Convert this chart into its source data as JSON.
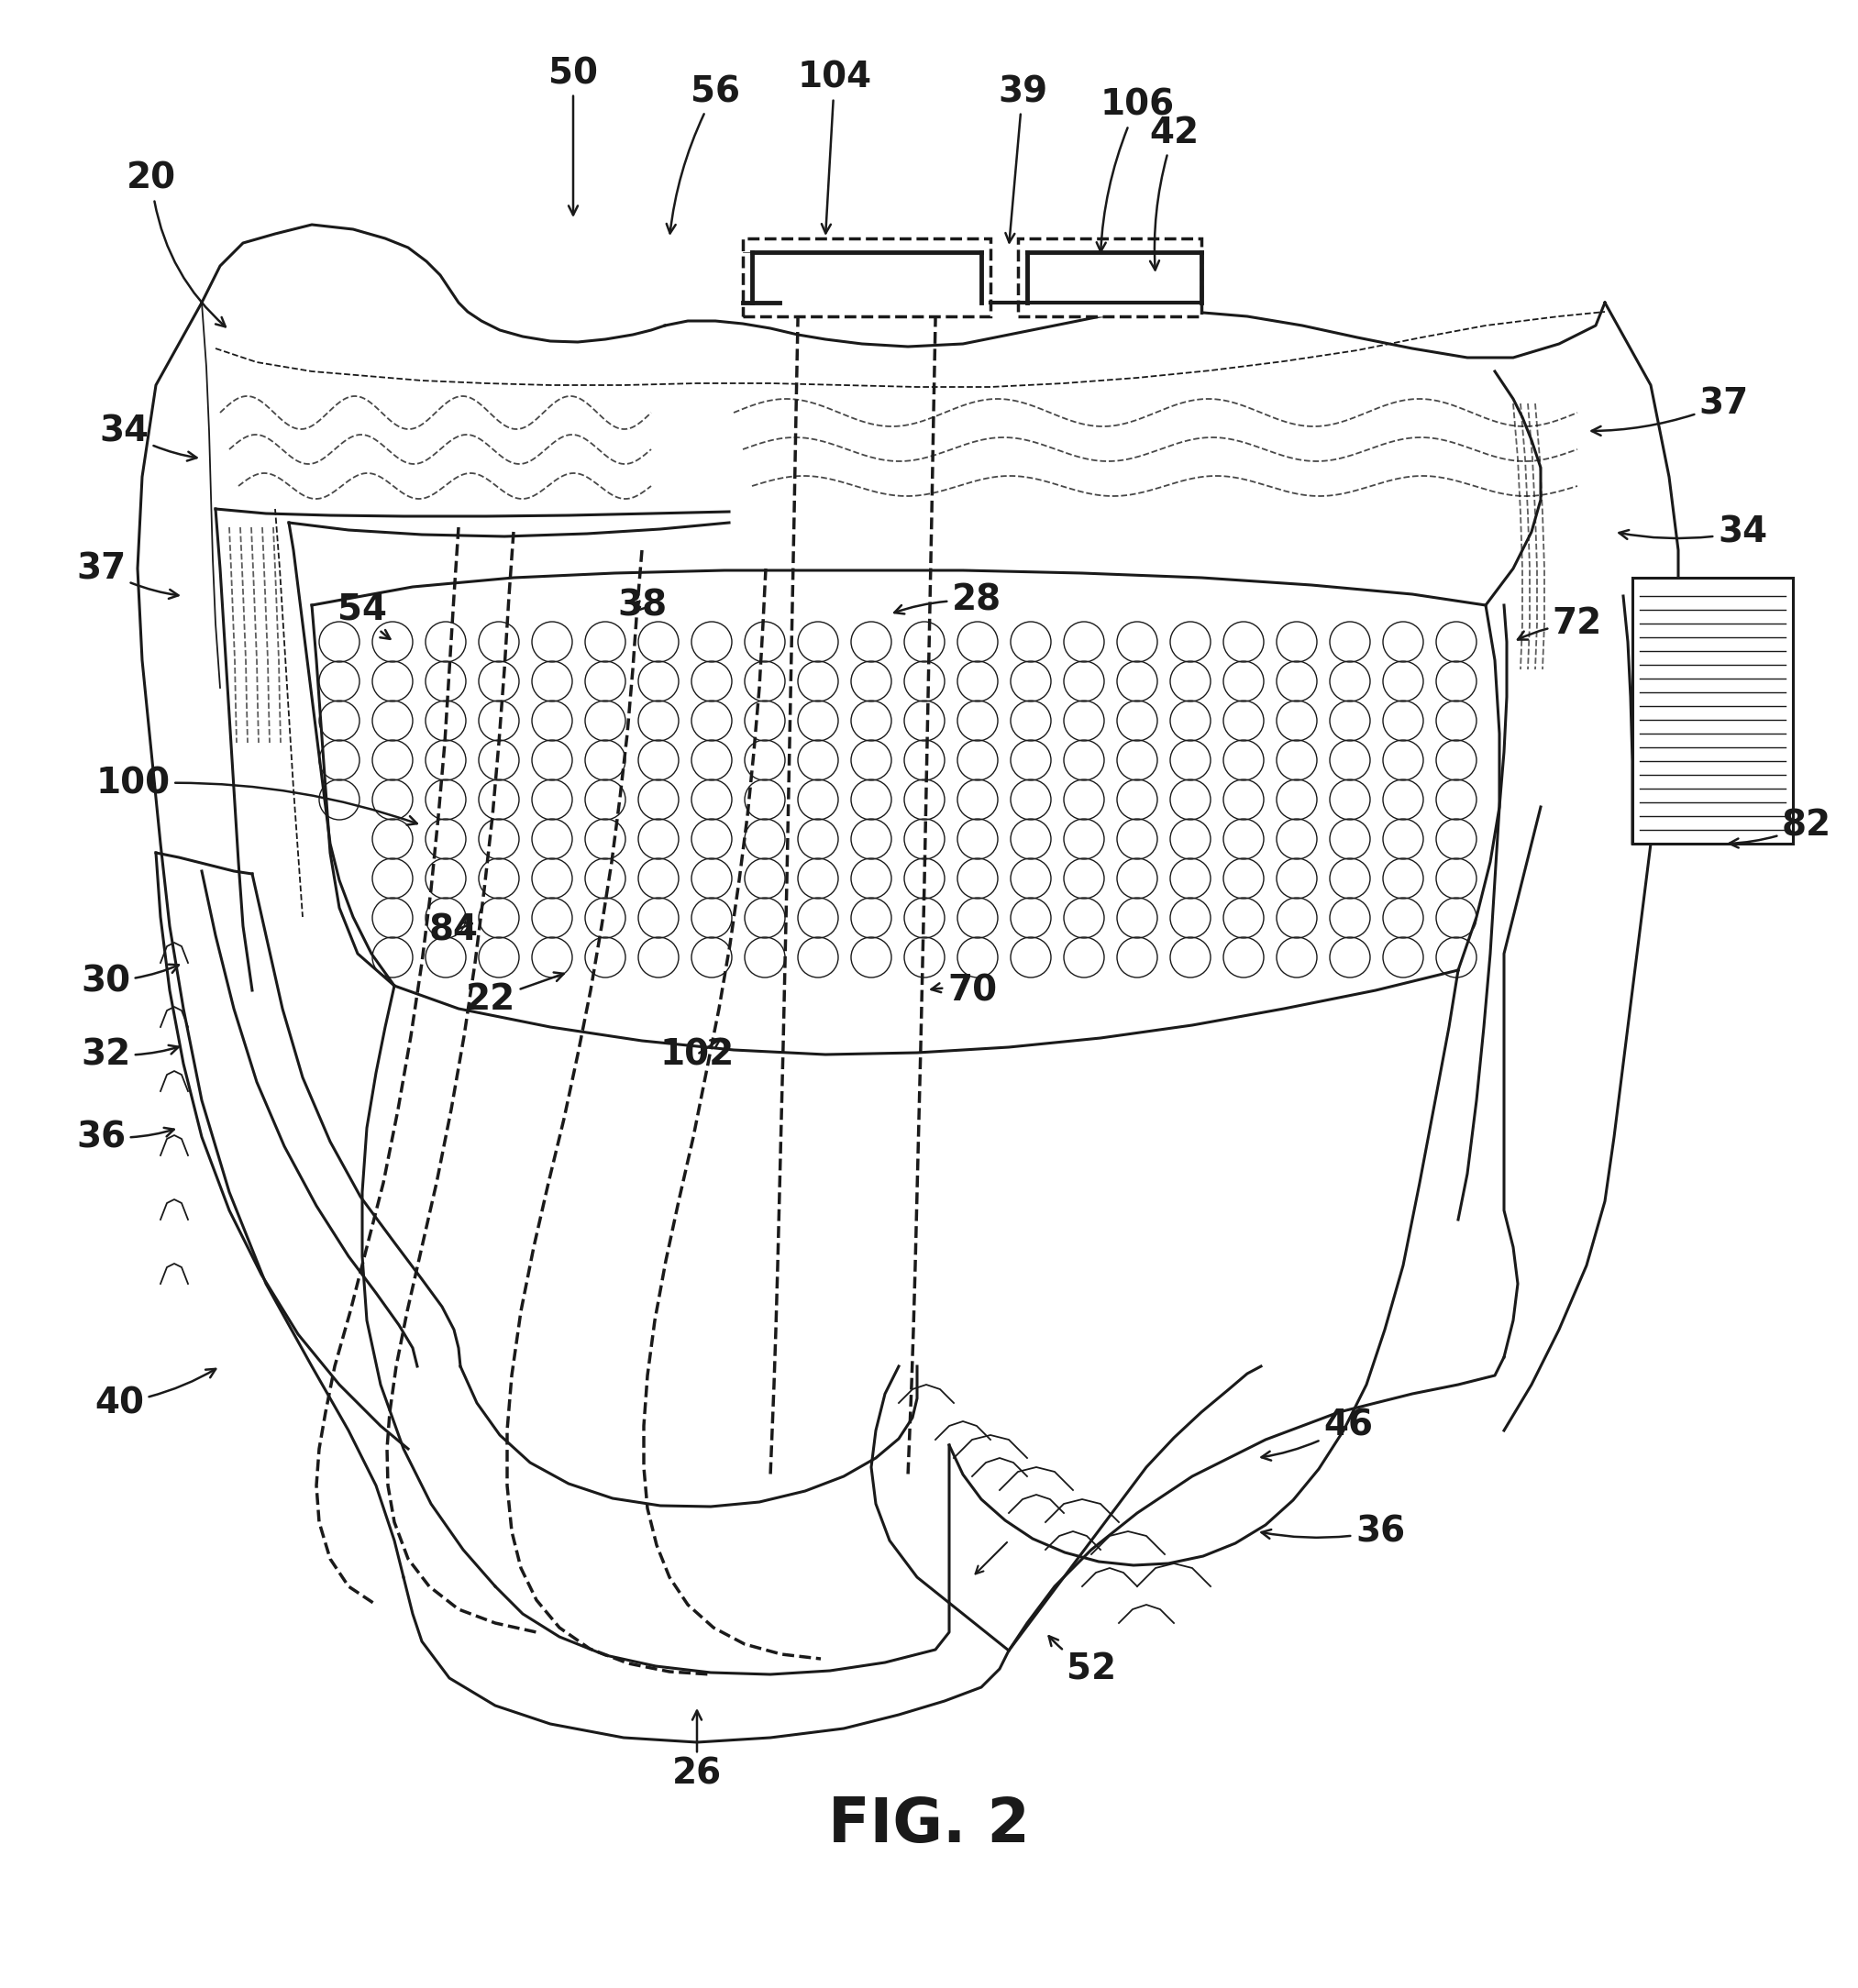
{
  "figure_label": "FIG. 2",
  "figure_label_fontsize": 48,
  "background_color": "#ffffff",
  "line_color": "#1a1a1a",
  "lw_main": 2.2,
  "lw_thin": 1.3,
  "lw_thick": 3.0,
  "lw_dashed": 2.5
}
